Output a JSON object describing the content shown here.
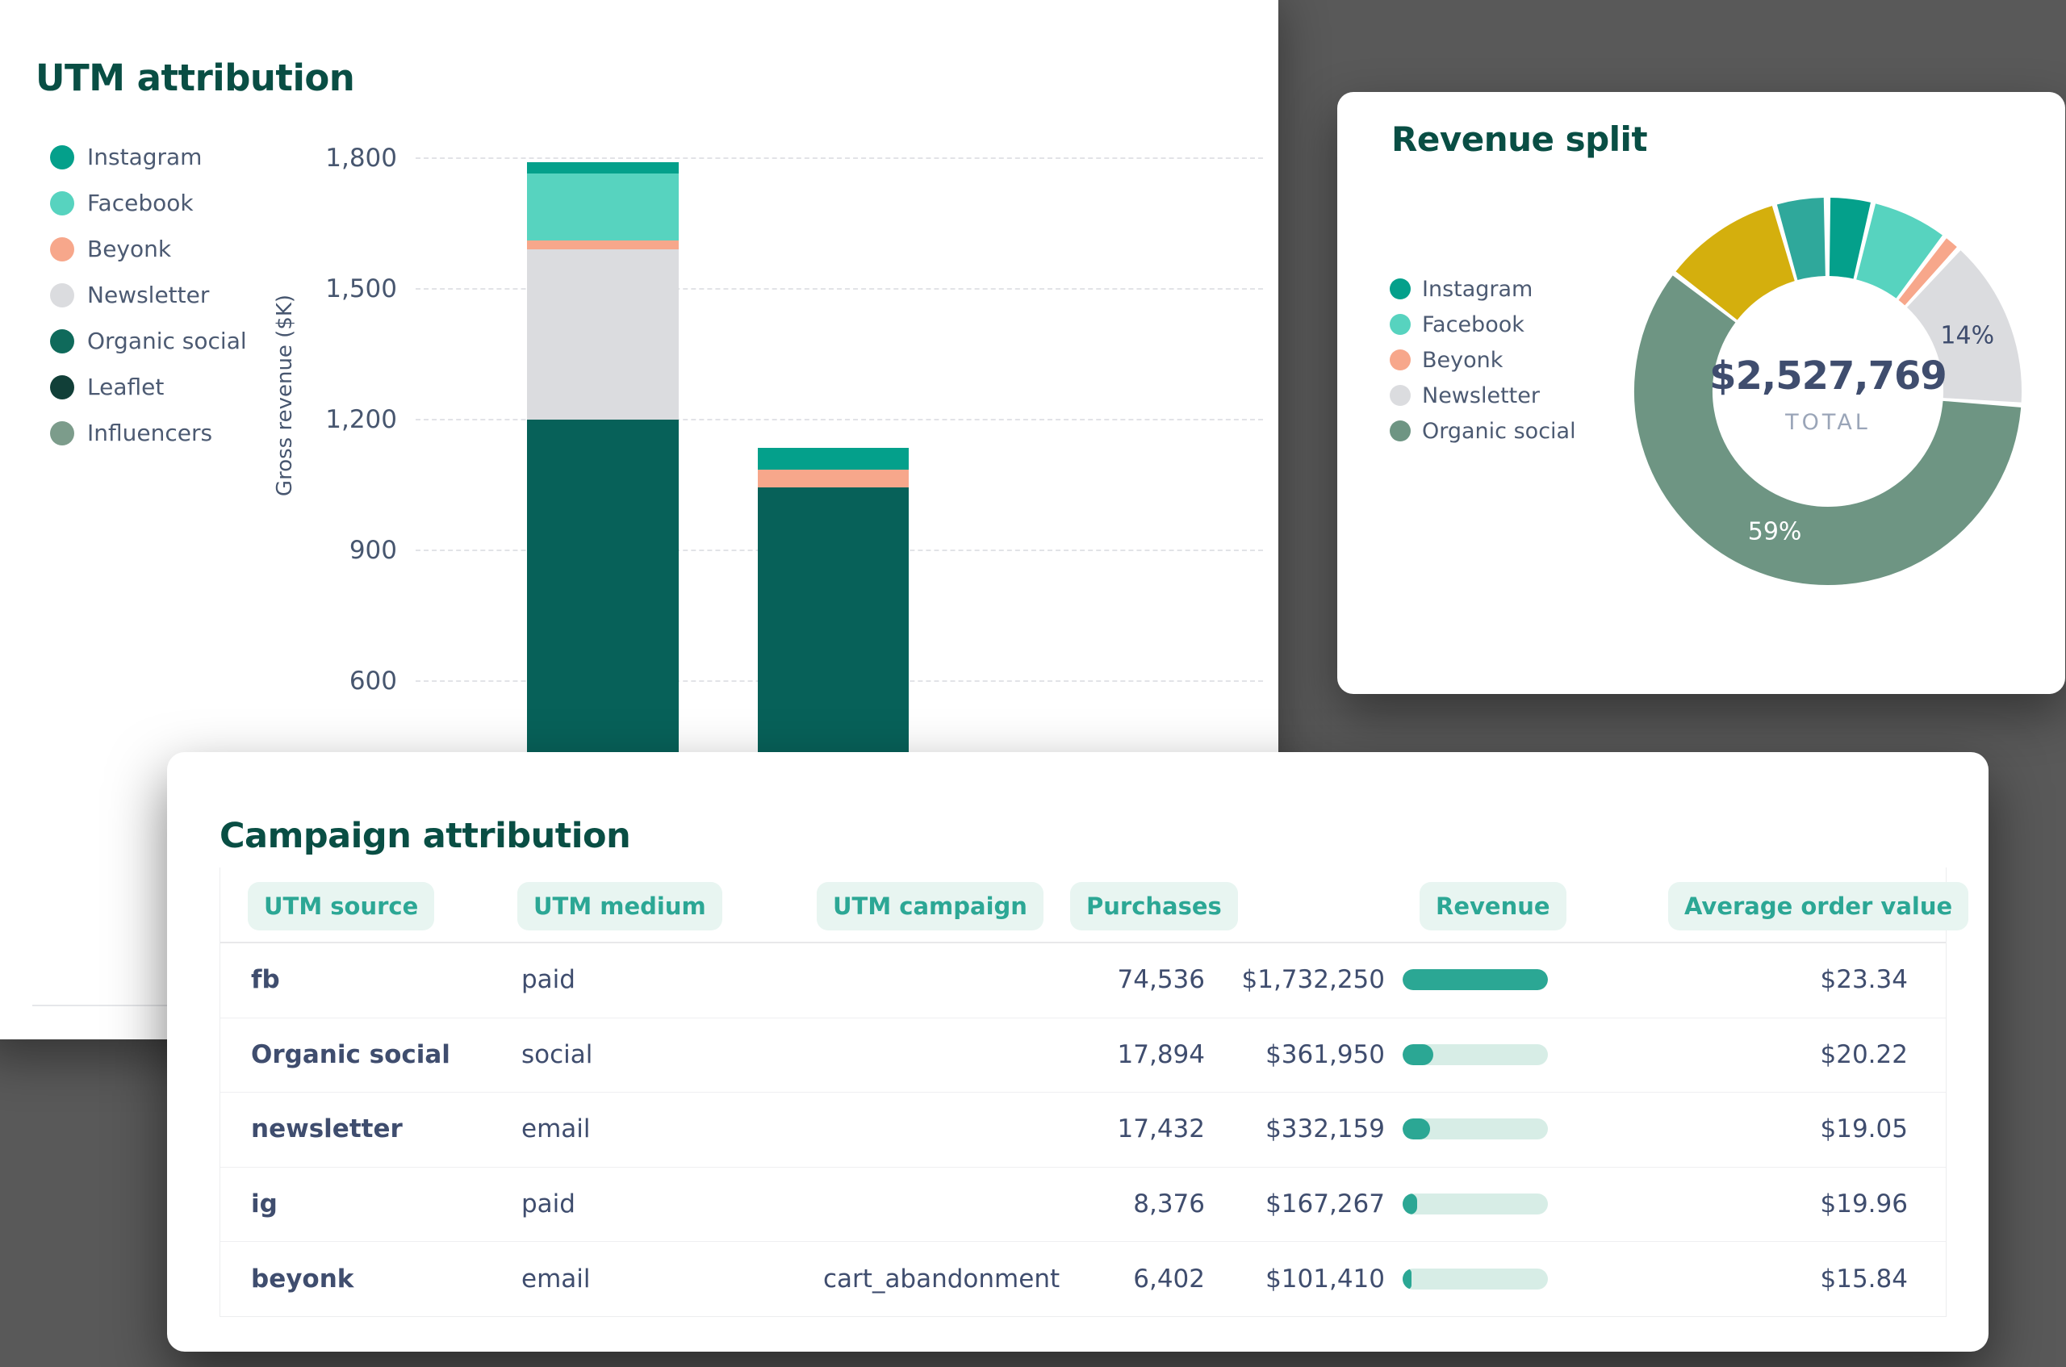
{
  "background": "#595959",
  "colors": {
    "card": "#FFFFFF",
    "title": "#094E44",
    "text": "#3F4D6E",
    "muted": "#9AA5B8",
    "tick": "#47566F",
    "legend_text": "#4C5A72",
    "accent": "#2CA795",
    "pill_bg": "#E8F5F1",
    "revenue_bar_track": "#D7EDE6",
    "revenue_bar_fill": "#2BA794",
    "grid": "#E2E3E7"
  },
  "chart_data": [
    {
      "type": "bar",
      "title": "UTM attribution",
      "ylabel": "Gross revenue ($K)",
      "ylim": [
        0,
        1800
      ],
      "grid": true,
      "legend_position": "left",
      "yticks": [
        {
          "value": 1800,
          "label": "1,800"
        },
        {
          "value": 1500,
          "label": "1,500"
        },
        {
          "value": 1200,
          "label": "1,200"
        },
        {
          "value": 900,
          "label": "900"
        },
        {
          "value": 600,
          "label": "600"
        }
      ],
      "legend": [
        {
          "label": "Instagram",
          "color": "#04A08B"
        },
        {
          "label": "Facebook",
          "color": "#57D3BF"
        },
        {
          "label": "Beyonk",
          "color": "#F7A78B"
        },
        {
          "label": "Newsletter",
          "color": "#DBDCDF"
        },
        {
          "label": "Organic social",
          "color": "#0F6A5B"
        },
        {
          "label": "Leaflet",
          "color": "#113F38"
        },
        {
          "label": "Influencers",
          "color": "#7C9C8B"
        }
      ],
      "bars": [
        {
          "segments": [
            {
              "source": "Organic social",
              "value": 1200,
              "color": "#076159"
            },
            {
              "source": "Newsletter",
              "value": 390,
              "color": "#DBDCDF"
            },
            {
              "source": "Beyonk",
              "value": 22,
              "color": "#F7A78B"
            },
            {
              "source": "Facebook",
              "value": 153,
              "color": "#57D3BF"
            },
            {
              "source": "Instagram",
              "value": 25,
              "color": "#04A08B"
            }
          ]
        },
        {
          "segments": [
            {
              "source": "Organic social",
              "value": 1045,
              "color": "#076159"
            },
            {
              "source": "Beyonk",
              "value": 40,
              "color": "#F7A78B"
            },
            {
              "source": "Instagram",
              "value": 50,
              "color": "#04A08B"
            }
          ]
        }
      ]
    },
    {
      "type": "pie",
      "title": "Revenue split",
      "total": "$2,527,769",
      "total_label": "TOTAL",
      "legend": [
        {
          "label": "Instagram",
          "color": "#04A08B"
        },
        {
          "label": "Facebook",
          "color": "#57D3BF"
        },
        {
          "label": "Beyonk",
          "color": "#F7A78B"
        },
        {
          "label": "Newsletter",
          "color": "#DBDCDF"
        },
        {
          "label": "Organic social",
          "color": "#6E9583"
        }
      ],
      "slices": [
        {
          "name": "Instagram",
          "deg": 12,
          "color": "#04A08B"
        },
        {
          "name": "Facebook",
          "deg": 22,
          "color": "#57D3BF"
        },
        {
          "name": "Beyonk",
          "deg": 4,
          "color": "#F7A78B"
        },
        {
          "name": "Newsletter",
          "deg": 50,
          "color": "#DBDCDF",
          "label": "14%",
          "label_color": "#3F4D6E"
        },
        {
          "name": "Organic social",
          "deg": 212,
          "color": "#6E9583",
          "label": "59%",
          "label_color": "#FFFFFF"
        },
        {
          "name": "Segment gold",
          "deg": 35,
          "color": "#D4AF0D"
        },
        {
          "name": "Segment teal",
          "deg": 14,
          "color": "#2FA89B"
        }
      ]
    },
    {
      "type": "table",
      "title": "Campaign attribution",
      "columns": [
        "UTM source",
        "UTM medium",
        "UTM campaign",
        "Purchases",
        "Revenue",
        "Average order value"
      ],
      "rows": [
        {
          "source": "fb",
          "medium": "paid",
          "campaign": "",
          "purchases": "74,536",
          "revenue": "$1,732,250",
          "revenue_frac": 1.0,
          "aov": "$23.34"
        },
        {
          "source": "Organic social",
          "medium": "social",
          "campaign": "",
          "purchases": "17,894",
          "revenue": "$361,950",
          "revenue_frac": 0.21,
          "aov": "$20.22"
        },
        {
          "source": "newsletter",
          "medium": "email",
          "campaign": "",
          "purchases": "17,432",
          "revenue": "$332,159",
          "revenue_frac": 0.19,
          "aov": "$19.05"
        },
        {
          "source": "ig",
          "medium": "paid",
          "campaign": "",
          "purchases": "8,376",
          "revenue": "$167,267",
          "revenue_frac": 0.1,
          "aov": "$19.96"
        },
        {
          "source": "beyonk",
          "medium": "email",
          "campaign": "cart_abandonment",
          "purchases": "6,402",
          "revenue": "$101,410",
          "revenue_frac": 0.06,
          "aov": "$15.84"
        }
      ]
    }
  ]
}
